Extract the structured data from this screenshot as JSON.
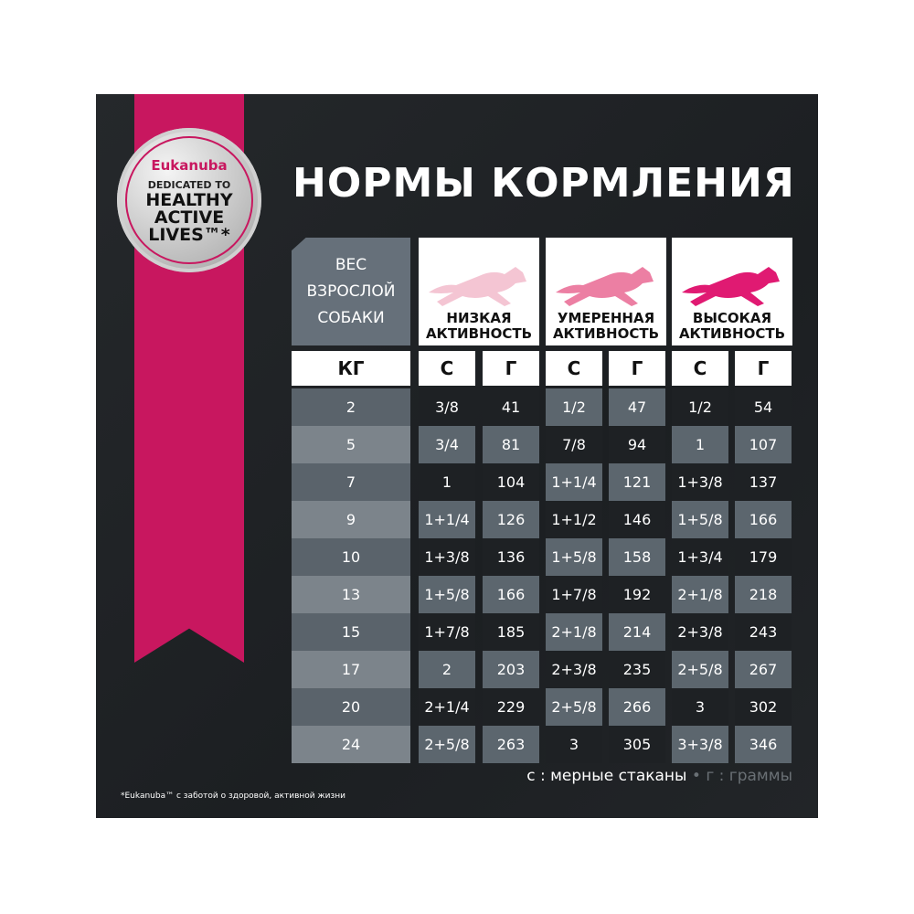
{
  "badge": {
    "brand": "Eukanuba",
    "line1": "DEDICATED TO",
    "line2": "HEALTHY",
    "line3": "ACTIVE",
    "line4": "LIVES™*"
  },
  "title": "НОРМЫ КОРМЛЕНИЯ",
  "weight_header": [
    "ВЕС",
    "ВЗРОСЛОЙ",
    "СОБАКИ"
  ],
  "activity": [
    {
      "line1": "НИЗКАЯ",
      "line2": "АКТИВНОСТЬ",
      "color": "#f4c5d3"
    },
    {
      "line1": "УМЕРЕННАЯ",
      "line2": "АКТИВНОСТЬ",
      "color": "#ec7fa3"
    },
    {
      "line1": "ВЫСОКАЯ",
      "line2": "АКТИВНОСТЬ",
      "color": "#e01a72"
    }
  ],
  "units": {
    "weight": "КГ",
    "cups": "С",
    "grams": "Г"
  },
  "rows": [
    [
      "2",
      "3/8",
      "41",
      "1/2",
      "47",
      "1/2",
      "54"
    ],
    [
      "5",
      "3/4",
      "81",
      "7/8",
      "94",
      "1",
      "107"
    ],
    [
      "7",
      "1",
      "104",
      "1+1/4",
      "121",
      "1+3/8",
      "137"
    ],
    [
      "9",
      "1+1/4",
      "126",
      "1+1/2",
      "146",
      "1+5/8",
      "166"
    ],
    [
      "10",
      "1+3/8",
      "136",
      "1+5/8",
      "158",
      "1+3/4",
      "179"
    ],
    [
      "13",
      "1+5/8",
      "166",
      "1+7/8",
      "192",
      "2+1/8",
      "218"
    ],
    [
      "15",
      "1+7/8",
      "185",
      "2+1/8",
      "214",
      "2+3/8",
      "243"
    ],
    [
      "17",
      "2",
      "203",
      "2+3/8",
      "235",
      "2+5/8",
      "267"
    ],
    [
      "20",
      "2+1/4",
      "229",
      "2+5/8",
      "266",
      "3",
      "302"
    ],
    [
      "24",
      "2+5/8",
      "263",
      "3",
      "305",
      "3+3/8",
      "346"
    ]
  ],
  "legend": {
    "cups": "с : мерные стаканы",
    "sep": "•",
    "grams": "г : граммы"
  },
  "footnote": "*Eukanuba™ с заботой о здоровой, активной жизни"
}
